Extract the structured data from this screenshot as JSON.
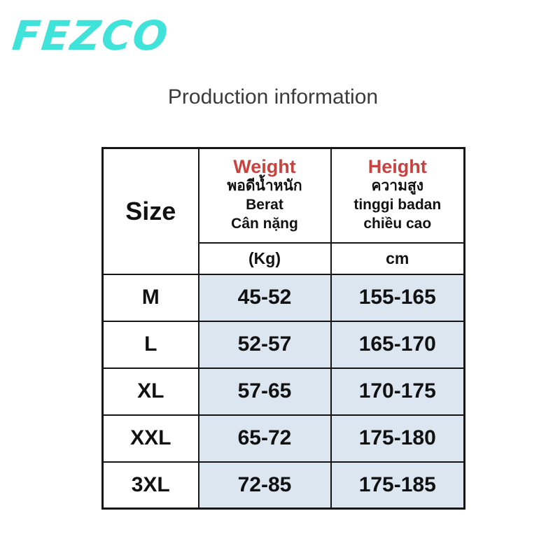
{
  "brand": {
    "logo_text": "FEZCO",
    "logo_color": "#3fe3d9"
  },
  "header": {
    "title": "Production information",
    "title_color": "#3b3b3b"
  },
  "chart_data": {
    "type": "table",
    "title": "Production information",
    "style": {
      "accent_red": "#c84240",
      "row_fill": "#dce6f1",
      "border_color": "#151515",
      "background": "#ffffff"
    },
    "columns": {
      "size": {
        "label": "Size"
      },
      "weight": {
        "label": "Weight",
        "th": "พอดีน้ำหนัก",
        "id": "Berat",
        "vi": "Cân nặng",
        "unit": "(Kg)"
      },
      "height": {
        "label": "Height",
        "th": "ความสูง",
        "id": "tinggi badan",
        "vi": "chiều cao",
        "unit": "cm"
      }
    },
    "rows": [
      {
        "size": "M",
        "weight_kg": "45-52",
        "height_cm": "155-165"
      },
      {
        "size": "L",
        "weight_kg": "52-57",
        "height_cm": "165-170"
      },
      {
        "size": "XL",
        "weight_kg": "57-65",
        "height_cm": "170-175"
      },
      {
        "size": "XXL",
        "weight_kg": "65-72",
        "height_cm": "175-180"
      },
      {
        "size": "3XL",
        "weight_kg": "72-85",
        "height_cm": "175-185"
      }
    ]
  }
}
